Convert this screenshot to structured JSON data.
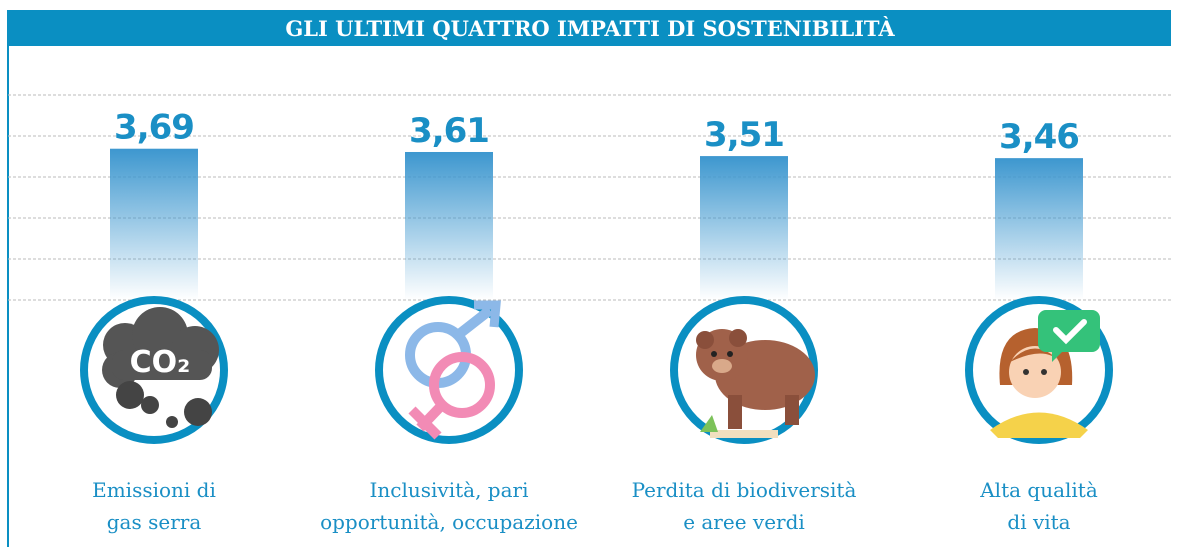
{
  "chart_data": {
    "type": "bar",
    "title": "GLI ULTIMI QUATTRO IMPATTI DI SOSTENIBILITÀ",
    "categories": [
      [
        "Emissioni di",
        "gas serra"
      ],
      [
        "Inclusività, pari",
        "opportunità, occupazione"
      ],
      [
        "Perdita di biodiversità",
        "e aree verdi"
      ],
      [
        "Alta qualità",
        "di vita"
      ]
    ],
    "values": [
      3.69,
      3.61,
      3.51,
      3.46
    ],
    "value_labels": [
      "3,69",
      "3,61",
      "3,51",
      "3,46"
    ],
    "color": "#3d97cf",
    "ylim": [
      0,
      5
    ],
    "grid": true
  }
}
